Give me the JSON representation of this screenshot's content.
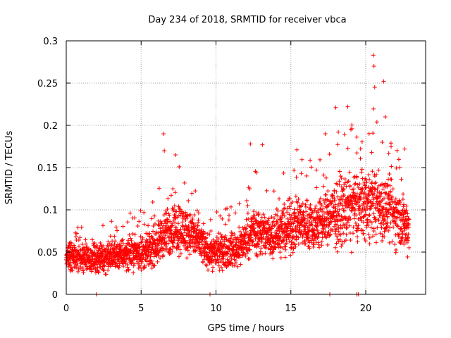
{
  "chart_data": {
    "type": "scatter",
    "title": "Day 234 of 2018, SRMTID for receiver vbca",
    "xlabel": "GPS time / hours",
    "ylabel": "SRMTID / TECUs",
    "xlim": [
      0,
      24
    ],
    "ylim": [
      0,
      0.3
    ],
    "x_ticks": [
      0,
      5,
      10,
      15,
      20
    ],
    "x_tick_labels": [
      "0",
      "5",
      "10",
      "15",
      "20"
    ],
    "y_ticks": [
      0,
      0.05,
      0.1,
      0.15,
      0.2,
      0.25,
      0.3
    ],
    "y_tick_labels": [
      "0",
      "0.05",
      "0.1",
      "0.15",
      "0.2",
      "0.25",
      "0.3"
    ],
    "grid": true,
    "marker": "plus",
    "marker_color": "#ff0000",
    "series": [
      {
        "name": "SRMTID",
        "sampling_step_hours": 0.008,
        "time_range_hours": [
          0,
          22.9
        ],
        "trend_profile": [
          {
            "x": 0.0,
            "y": 0.045
          },
          {
            "x": 1.5,
            "y": 0.042
          },
          {
            "x": 3.0,
            "y": 0.045
          },
          {
            "x": 4.5,
            "y": 0.05
          },
          {
            "x": 5.5,
            "y": 0.05
          },
          {
            "x": 6.5,
            "y": 0.07
          },
          {
            "x": 7.5,
            "y": 0.08
          },
          {
            "x": 8.5,
            "y": 0.07
          },
          {
            "x": 9.5,
            "y": 0.05
          },
          {
            "x": 10.5,
            "y": 0.05
          },
          {
            "x": 11.5,
            "y": 0.055
          },
          {
            "x": 12.5,
            "y": 0.075
          },
          {
            "x": 13.5,
            "y": 0.07
          },
          {
            "x": 14.5,
            "y": 0.075
          },
          {
            "x": 15.5,
            "y": 0.085
          },
          {
            "x": 16.5,
            "y": 0.08
          },
          {
            "x": 17.5,
            "y": 0.09
          },
          {
            "x": 18.5,
            "y": 0.1
          },
          {
            "x": 19.5,
            "y": 0.105
          },
          {
            "x": 20.5,
            "y": 0.11
          },
          {
            "x": 21.5,
            "y": 0.1
          },
          {
            "x": 22.5,
            "y": 0.085
          },
          {
            "x": 22.9,
            "y": 0.08
          }
        ],
        "notable_points": [
          {
            "x": 6.5,
            "y": 0.19
          },
          {
            "x": 6.55,
            "y": 0.17
          },
          {
            "x": 7.3,
            "y": 0.165
          },
          {
            "x": 12.3,
            "y": 0.178
          },
          {
            "x": 13.1,
            "y": 0.177
          },
          {
            "x": 15.4,
            "y": 0.171
          },
          {
            "x": 17.3,
            "y": 0.19
          },
          {
            "x": 18.0,
            "y": 0.221
          },
          {
            "x": 18.8,
            "y": 0.222
          },
          {
            "x": 19.4,
            "y": 0.186
          },
          {
            "x": 20.5,
            "y": 0.283
          },
          {
            "x": 20.55,
            "y": 0.27
          },
          {
            "x": 20.6,
            "y": 0.245
          },
          {
            "x": 21.2,
            "y": 0.252
          },
          {
            "x": 21.3,
            "y": 0.21
          },
          {
            "x": 21.1,
            "y": 0.18
          },
          {
            "x": 22.6,
            "y": 0.172
          }
        ],
        "zero_points_x": [
          2.0,
          9.6,
          17.6,
          19.4,
          19.5
        ]
      }
    ]
  }
}
